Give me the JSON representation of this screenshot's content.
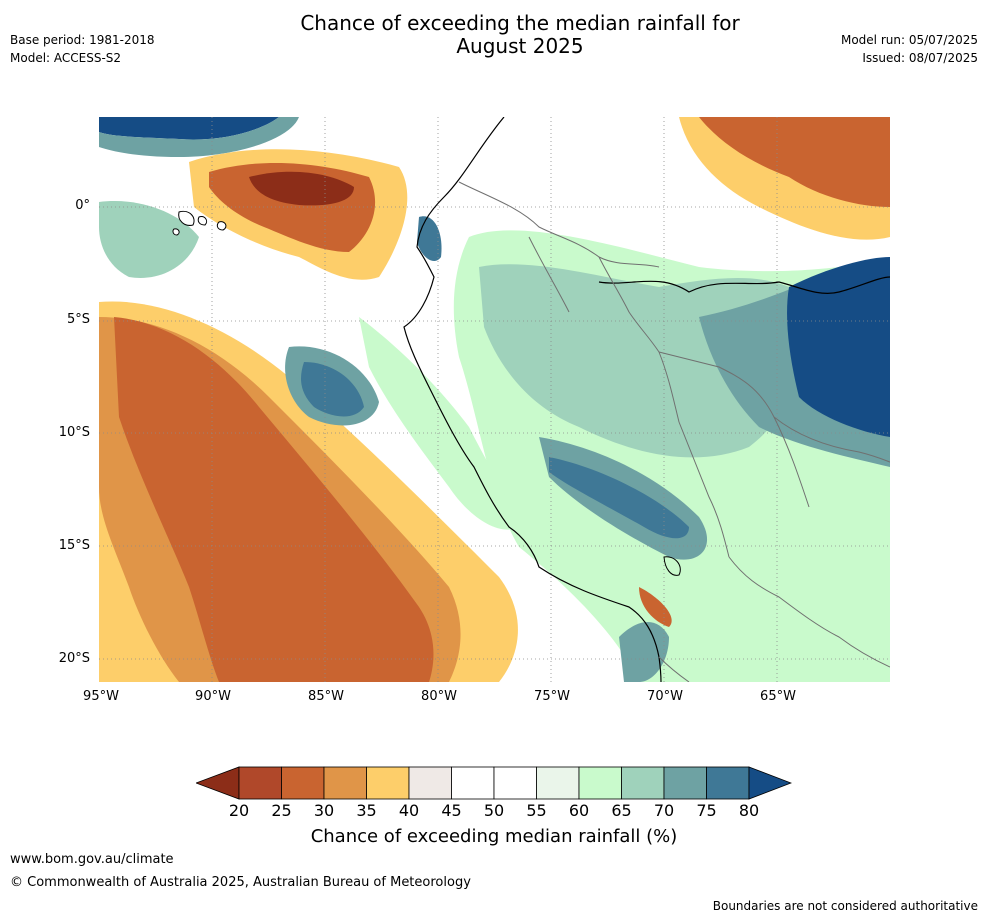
{
  "header": {
    "title_line1": "Chance of exceeding the median rainfall for",
    "title_line2": "August 2025",
    "base_period": "Base period: 1981-2018",
    "model": "Model: ACCESS-S2",
    "model_run": "Model run: 05/07/2025",
    "issued": "Issued: 08/07/2025"
  },
  "map": {
    "lat_labels": [
      "0°",
      "5°S",
      "10°S",
      "15°S",
      "20°S"
    ],
    "lon_labels": [
      "95°W",
      "90°W",
      "85°W",
      "80°W",
      "75°W",
      "70°W",
      "65°W"
    ]
  },
  "legend": {
    "title": "Chance of exceeding median rainfall (%)",
    "ticks": [
      "20",
      "25",
      "30",
      "35",
      "40",
      "45",
      "50",
      "55",
      "60",
      "65",
      "70",
      "75",
      "80"
    ],
    "colors": {
      "below_20": "#8c2d18",
      "20_25": "#b0482a",
      "25_30": "#c96430",
      "30_35": "#e09548",
      "35_40": "#fdce6a",
      "40_45": "#efe9e6",
      "45_50": "#ffffff",
      "50_55": "#ffffff",
      "55_60": "#eaf5ea",
      "60_65": "#c9facc",
      "65_70": "#9fd2bb",
      "70_75": "#6ea2a3",
      "75_80": "#3f7896",
      "above_80": "#154c85"
    }
  },
  "footer": {
    "website": "www.bom.gov.au/climate",
    "copyright": "© Commonwealth of Australia 2025, Australian Bureau of Meteorology",
    "disclaimer": "Boundaries are not considered authoritative"
  }
}
